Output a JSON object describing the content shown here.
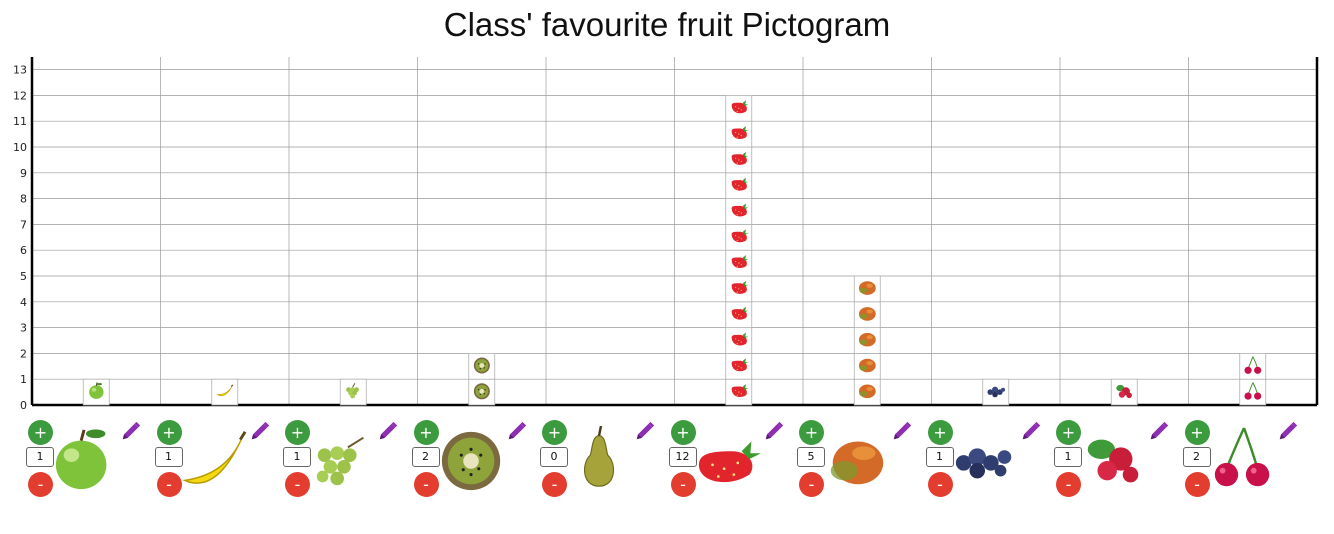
{
  "title": "Class' favourite fruit Pictogram",
  "chart_data": {
    "type": "bar",
    "title": "Class' favourite fruit Pictogram",
    "xlabel": "",
    "ylabel": "",
    "ylim": [
      0,
      13
    ],
    "y_ticks": [
      "0",
      "1",
      "2",
      "3",
      "4",
      "5",
      "6",
      "7",
      "8",
      "9",
      "10",
      "11",
      "12",
      "13"
    ],
    "categories": [
      "apple",
      "banana",
      "grapes",
      "kiwi",
      "pear",
      "strawberry",
      "mango",
      "blueberry",
      "cranberry",
      "cherry"
    ],
    "values": [
      1,
      1,
      1,
      2,
      0,
      12,
      5,
      1,
      1,
      2
    ],
    "grid": true,
    "legend": "none"
  },
  "controls": {
    "plus_label": "+",
    "minus_label": "-",
    "items": [
      {
        "fruit": "apple",
        "count": "1",
        "icon": "apple-icon"
      },
      {
        "fruit": "banana",
        "count": "1",
        "icon": "banana-icon"
      },
      {
        "fruit": "grapes",
        "count": "1",
        "icon": "grapes-icon"
      },
      {
        "fruit": "kiwi",
        "count": "2",
        "icon": "kiwi-icon"
      },
      {
        "fruit": "pear",
        "count": "0",
        "icon": "pear-icon"
      },
      {
        "fruit": "strawberry",
        "count": "12",
        "icon": "strawberry-icon"
      },
      {
        "fruit": "mango",
        "count": "5",
        "icon": "mango-icon"
      },
      {
        "fruit": "blueberry",
        "count": "1",
        "icon": "blueberry-icon"
      },
      {
        "fruit": "cranberry",
        "count": "1",
        "icon": "cranberry-icon"
      },
      {
        "fruit": "cherry",
        "count": "2",
        "icon": "cherry-icon"
      }
    ]
  },
  "colors": {
    "plus": "#3c9a3f",
    "minus": "#e23d2f",
    "pencil": "#8e2fb3",
    "grid": "#9a9a9a",
    "axis": "#000000"
  }
}
